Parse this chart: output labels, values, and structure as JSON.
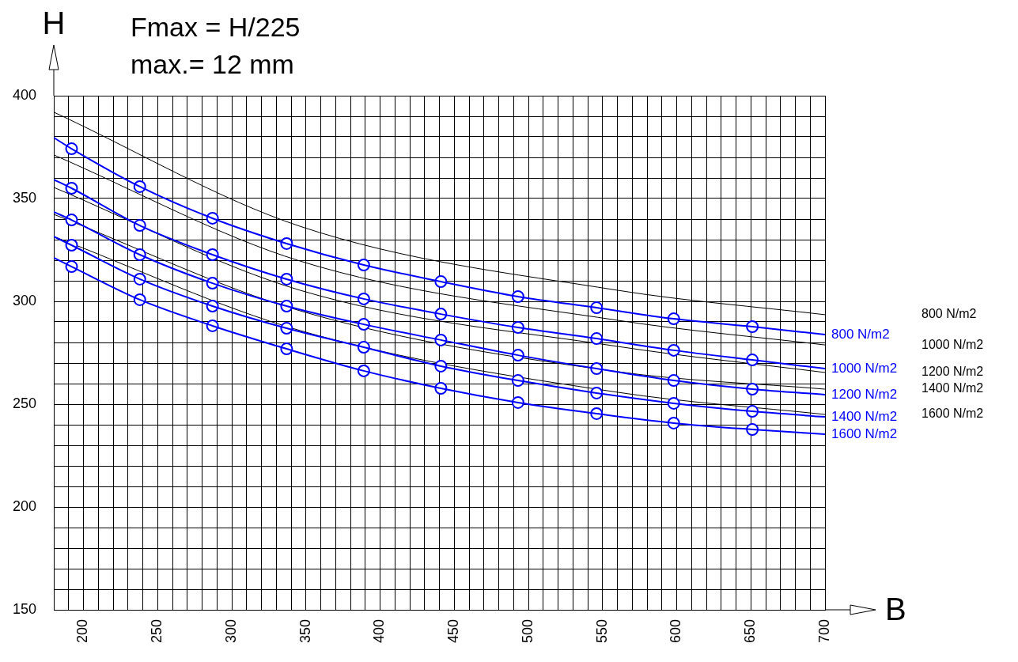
{
  "chart_data": {
    "type": "line",
    "title": "Fmax = H/225",
    "subtitle": "max.= 12 mm",
    "xlabel": "B",
    "ylabel": "H",
    "xlim": [
      180,
      700
    ],
    "ylim": [
      150,
      400
    ],
    "xticks": [
      {
        "value": 190,
        "label": null
      },
      200,
      {
        "value": 210,
        "label": null
      },
      {
        "value": 220,
        "label": null
      },
      {
        "value": 230,
        "label": null
      },
      {
        "value": 240,
        "label": null
      },
      250,
      {
        "value": 260,
        "label": null
      },
      {
        "value": 270,
        "label": null
      },
      {
        "value": 280,
        "label": null
      },
      {
        "value": 290,
        "label": null
      },
      300,
      {
        "value": 310,
        "label": null
      },
      {
        "value": 320,
        "label": null
      },
      {
        "value": 330,
        "label": null
      },
      {
        "value": 340,
        "label": null
      },
      350,
      {
        "value": 360,
        "label": null
      },
      {
        "value": 370,
        "label": null
      },
      {
        "value": 380,
        "label": null
      },
      {
        "value": 390,
        "label": null
      },
      400,
      {
        "value": 410,
        "label": null
      },
      {
        "value": 420,
        "label": null
      },
      {
        "value": 430,
        "label": null
      },
      {
        "value": 440,
        "label": null
      },
      450,
      {
        "value": 460,
        "label": null
      },
      {
        "value": 470,
        "label": null
      },
      {
        "value": 480,
        "label": null
      },
      {
        "value": 490,
        "label": null
      },
      500,
      {
        "value": 510,
        "label": null
      },
      {
        "value": 520,
        "label": null
      },
      {
        "value": 530,
        "label": null
      },
      {
        "value": 540,
        "label": null
      },
      550,
      {
        "value": 560,
        "label": null
      },
      {
        "value": 570,
        "label": null
      },
      {
        "value": 580,
        "label": null
      },
      {
        "value": 590,
        "label": null
      },
      600,
      {
        "value": 610,
        "label": null
      },
      {
        "value": 620,
        "label": null
      },
      {
        "value": 630,
        "label": null
      },
      {
        "value": 640,
        "label": null
      },
      650,
      {
        "value": 660,
        "label": null
      },
      {
        "value": 670,
        "label": null
      },
      {
        "value": 680,
        "label": null
      },
      {
        "value": 690,
        "label": null
      },
      700
    ],
    "yticks": [
      150,
      {
        "value": 160,
        "label": null
      },
      {
        "value": 170,
        "label": null
      },
      {
        "value": 180,
        "label": null
      },
      {
        "value": 190,
        "label": null
      },
      200,
      {
        "value": 210,
        "label": null
      },
      {
        "value": 220,
        "label": null
      },
      {
        "value": 230,
        "label": null
      },
      {
        "value": 240,
        "label": null
      },
      250,
      {
        "value": 260,
        "label": null
      },
      {
        "value": 270,
        "label": null
      },
      {
        "value": 280,
        "label": null
      },
      {
        "value": 290,
        "label": null
      },
      300,
      {
        "value": 310,
        "label": null
      },
      {
        "value": 320,
        "label": null
      },
      {
        "value": 330,
        "label": null
      },
      {
        "value": 340,
        "label": null
      },
      350,
      {
        "value": 360,
        "label": null
      },
      {
        "value": 370,
        "label": null
      },
      {
        "value": 380,
        "label": null
      },
      {
        "value": 390,
        "label": null
      },
      400
    ],
    "grid": true,
    "legend": false,
    "series": [
      {
        "name": "800 N/m2",
        "color": "#0000ff",
        "marker": "none",
        "x": [
          180,
          192,
          238,
          287,
          337,
          389,
          441,
          493,
          546,
          598,
          651,
          700
        ],
        "values": [
          379.6,
          374.2,
          355.8,
          340.4,
          328.1,
          317.7,
          309.6,
          302.3,
          296.9,
          291.5,
          287.7,
          283.8
        ]
      },
      {
        "name": "1000 N/m2",
        "color": "#0000ff",
        "marker": "none",
        "x": [
          180,
          192,
          238,
          287,
          337,
          389,
          441,
          493,
          546,
          598,
          651,
          700
        ],
        "values": [
          359.2,
          355,
          336.9,
          322.7,
          310.8,
          301.2,
          293.8,
          287.3,
          281.9,
          276.2,
          271.5,
          267.3
        ]
      },
      {
        "name": "1200 N/m2",
        "color": "#0000ff",
        "marker": "none",
        "x": [
          180,
          192,
          238,
          287,
          337,
          389,
          441,
          493,
          546,
          598,
          651,
          700
        ],
        "values": [
          343.5,
          339.6,
          322.7,
          308.8,
          297.7,
          288.8,
          281.2,
          273.8,
          267.3,
          261.5,
          257.3,
          254.6
        ]
      },
      {
        "name": "1400 N/m2",
        "color": "#0000ff",
        "marker": "none",
        "x": [
          180,
          192,
          238,
          287,
          337,
          389,
          441,
          493,
          546,
          598,
          651,
          700
        ],
        "values": [
          331.5,
          327.3,
          310.8,
          297.7,
          286.9,
          277.7,
          268.5,
          261.5,
          255.4,
          250.4,
          246.5,
          243.8
        ]
      },
      {
        "name": "1600 N/m2",
        "color": "#0000ff",
        "marker": "none",
        "x": [
          180,
          192,
          238,
          287,
          337,
          389,
          441,
          493,
          546,
          598,
          651,
          700
        ],
        "values": [
          321.2,
          316.9,
          300.8,
          288.1,
          276.9,
          266.2,
          257.7,
          250.8,
          245.4,
          240.8,
          237.7,
          235.4
        ]
      },
      {
        "type": "scatter",
        "color": "#0000ff",
        "marker": "circle",
        "x": [
          192,
          238,
          287,
          337,
          389,
          441,
          493,
          546,
          598,
          651
        ],
        "values": [
          374.2,
          355.8,
          340.4,
          328.1,
          317.7,
          309.6,
          302.3,
          296.9,
          291.5,
          287.7
        ]
      },
      {
        "type": "scatter",
        "color": "#0000ff",
        "marker": "circle",
        "x": [
          192,
          238,
          287,
          337,
          389,
          441,
          493,
          546,
          598,
          651
        ],
        "values": [
          355,
          336.9,
          322.7,
          310.8,
          301.2,
          293.8,
          287.3,
          281.9,
          276.2,
          271.5
        ]
      },
      {
        "type": "scatter",
        "color": "#0000ff",
        "marker": "circle",
        "x": [
          192,
          238,
          287,
          337,
          389,
          441,
          493,
          546,
          598,
          651
        ],
        "values": [
          339.6,
          322.7,
          308.8,
          297.7,
          288.8,
          281.2,
          273.8,
          267.3,
          261.5,
          257.3
        ]
      },
      {
        "type": "scatter",
        "color": "#0000ff",
        "marker": "circle",
        "x": [
          192,
          238,
          287,
          337,
          389,
          441,
          493,
          546,
          598,
          651
        ],
        "values": [
          327.3,
          310.8,
          297.7,
          286.9,
          277.7,
          268.5,
          261.5,
          255.4,
          250.4,
          246.5
        ]
      },
      {
        "type": "scatter",
        "color": "#0000ff",
        "marker": "circle",
        "x": [
          192,
          238,
          287,
          337,
          389,
          441,
          493,
          546,
          598,
          651
        ],
        "values": [
          316.9,
          300.8,
          288.1,
          276.9,
          266.2,
          257.7,
          250.8,
          245.4,
          240.8,
          237.7
        ]
      },
      {
        "name": "800 N/m2",
        "color": "#000000",
        "marker": "none",
        "x": [
          180,
          346,
          560,
          700
        ],
        "values": [
          392,
          336.5,
          305.4,
          293.5
        ]
      },
      {
        "name": "1000 N/m2",
        "color": "#000000",
        "marker": "none",
        "x": [
          180,
          346,
          560,
          700
        ],
        "values": [
          371.2,
          319.6,
          290.8,
          278.8
        ]
      },
      {
        "name": "1200 N/m2",
        "color": "#000000",
        "marker": "none",
        "x": [
          180,
          346,
          560,
          700
        ],
        "values": [
          355.4,
          305.4,
          278.1,
          265.4
        ]
      },
      {
        "name": "1400 N/m2",
        "color": "#000000",
        "marker": "none",
        "x": [
          180,
          346,
          560,
          700
        ],
        "values": [
          342.3,
          295.4,
          265.8,
          257.3
        ]
      },
      {
        "name": "1600 N/m2",
        "color": "#000000",
        "marker": "none",
        "x": [
          180,
          346,
          560,
          700
        ],
        "values": [
          331.5,
          285.8,
          255.8,
          245
        ]
      }
    ]
  }
}
